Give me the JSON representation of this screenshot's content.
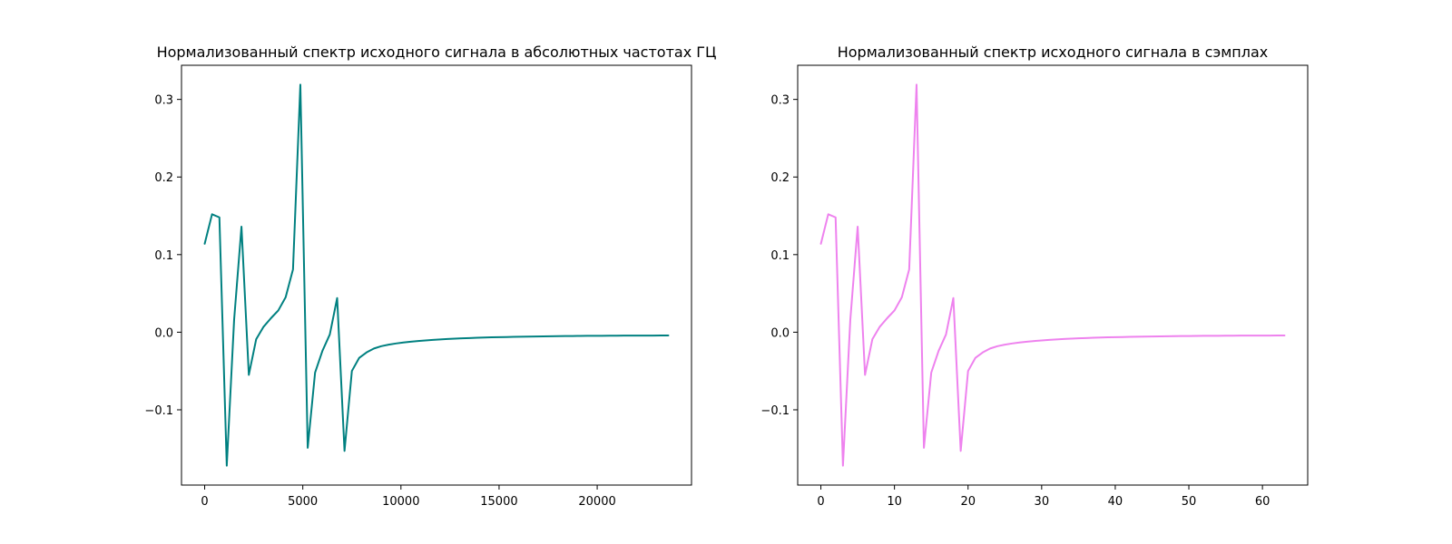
{
  "chart_data": [
    {
      "type": "line",
      "title": "Нормализованный спектр исходного сигнала в абсолютных частотах ГЦ",
      "xlabel": "",
      "ylabel": "",
      "xlim": [
        -1181,
        24806
      ],
      "ylim": [
        -0.197,
        0.344
      ],
      "xticks": [
        0,
        5000,
        10000,
        15000,
        20000
      ],
      "xtick_labels": [
        "0",
        "5000",
        "10000",
        "15000",
        "20000"
      ],
      "yticks": [
        -0.1,
        0.0,
        0.1,
        0.2,
        0.3
      ],
      "ytick_labels": [
        "−0.1",
        "0.0",
        "0.1",
        "0.2",
        "0.3"
      ],
      "grid": false,
      "series": [
        {
          "color": "#008080",
          "x": [
            0,
            375,
            750,
            1125,
            1500,
            1875,
            2250,
            2625,
            3000,
            3375,
            3750,
            4125,
            4500,
            4875,
            5250,
            5625,
            6000,
            6375,
            6750,
            7125,
            7500,
            7875,
            8250,
            8625,
            9000,
            9375,
            9750,
            10125,
            10500,
            10875,
            11250,
            11625,
            12000,
            12375,
            12750,
            13125,
            13500,
            13875,
            14250,
            14625,
            15000,
            15375,
            15750,
            16125,
            16500,
            16875,
            17250,
            17625,
            18000,
            18375,
            18750,
            19125,
            19500,
            19875,
            20250,
            20625,
            21000,
            21375,
            21750,
            22125,
            22500,
            22875,
            23250,
            23625
          ],
          "y": [
            0.114,
            0.152,
            0.148,
            -0.172,
            0.016,
            0.136,
            -0.055,
            -0.009,
            0.007,
            0.018,
            0.028,
            0.045,
            0.081,
            0.319,
            -0.149,
            -0.052,
            -0.024,
            -0.003,
            0.044,
            -0.153,
            -0.05,
            -0.033,
            -0.026,
            -0.021,
            -0.018,
            -0.016,
            -0.0145,
            -0.0133,
            -0.0122,
            -0.0113,
            -0.0106,
            -0.0099,
            -0.0093,
            -0.0088,
            -0.0083,
            -0.0079,
            -0.0075,
            -0.0072,
            -0.0069,
            -0.0066,
            -0.0064,
            -0.0062,
            -0.006,
            -0.0058,
            -0.0056,
            -0.0055,
            -0.0053,
            -0.0052,
            -0.0051,
            -0.005,
            -0.0049,
            -0.0048,
            -0.0047,
            -0.0046,
            -0.0046,
            -0.0045,
            -0.0045,
            -0.0044,
            -0.0044,
            -0.0043,
            -0.0043,
            -0.0043,
            -0.0042,
            -0.0042
          ]
        }
      ]
    },
    {
      "type": "line",
      "title": "Нормализованный спектр исходного сигнала в сэмплах",
      "xlabel": "",
      "ylabel": "",
      "xlim": [
        -3.15,
        66.15
      ],
      "ylim": [
        -0.197,
        0.344
      ],
      "xticks": [
        0,
        10,
        20,
        30,
        40,
        50,
        60
      ],
      "xtick_labels": [
        "0",
        "10",
        "20",
        "30",
        "40",
        "50",
        "60"
      ],
      "yticks": [
        -0.1,
        0.0,
        0.1,
        0.2,
        0.3
      ],
      "ytick_labels": [
        "−0.1",
        "0.0",
        "0.1",
        "0.2",
        "0.3"
      ],
      "grid": false,
      "series": [
        {
          "color": "#ee82ee",
          "x": [
            0,
            1,
            2,
            3,
            4,
            5,
            6,
            7,
            8,
            9,
            10,
            11,
            12,
            13,
            14,
            15,
            16,
            17,
            18,
            19,
            20,
            21,
            22,
            23,
            24,
            25,
            26,
            27,
            28,
            29,
            30,
            31,
            32,
            33,
            34,
            35,
            36,
            37,
            38,
            39,
            40,
            41,
            42,
            43,
            44,
            45,
            46,
            47,
            48,
            49,
            50,
            51,
            52,
            53,
            54,
            55,
            56,
            57,
            58,
            59,
            60,
            61,
            62,
            63
          ],
          "y": [
            0.114,
            0.152,
            0.148,
            -0.172,
            0.016,
            0.136,
            -0.055,
            -0.009,
            0.007,
            0.018,
            0.028,
            0.045,
            0.081,
            0.319,
            -0.149,
            -0.052,
            -0.024,
            -0.003,
            0.044,
            -0.153,
            -0.05,
            -0.033,
            -0.026,
            -0.021,
            -0.018,
            -0.016,
            -0.0145,
            -0.0133,
            -0.0122,
            -0.0113,
            -0.0106,
            -0.0099,
            -0.0093,
            -0.0088,
            -0.0083,
            -0.0079,
            -0.0075,
            -0.0072,
            -0.0069,
            -0.0066,
            -0.0064,
            -0.0062,
            -0.006,
            -0.0058,
            -0.0056,
            -0.0055,
            -0.0053,
            -0.0052,
            -0.0051,
            -0.005,
            -0.0049,
            -0.0048,
            -0.0047,
            -0.0046,
            -0.0046,
            -0.0045,
            -0.0045,
            -0.0044,
            -0.0044,
            -0.0043,
            -0.0043,
            -0.0043,
            -0.0042,
            -0.0042
          ]
        }
      ]
    }
  ]
}
